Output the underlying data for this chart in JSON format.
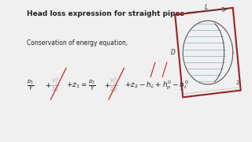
{
  "title": "Head loss expression for straight pipes",
  "subtitle": "Conservation of energy equation,",
  "bg_color": "#f0f0f0",
  "main_bg": "#ffffff",
  "text_color": "#222222",
  "title_fontsize": 6.5,
  "subtitle_fontsize": 5.5,
  "eq_fontsize": 6.5,
  "strikethrough_color": "#cc2222",
  "left_bar_color": "#111111",
  "pipe_red": "#992222",
  "pipe_blue": "#88bbcc"
}
